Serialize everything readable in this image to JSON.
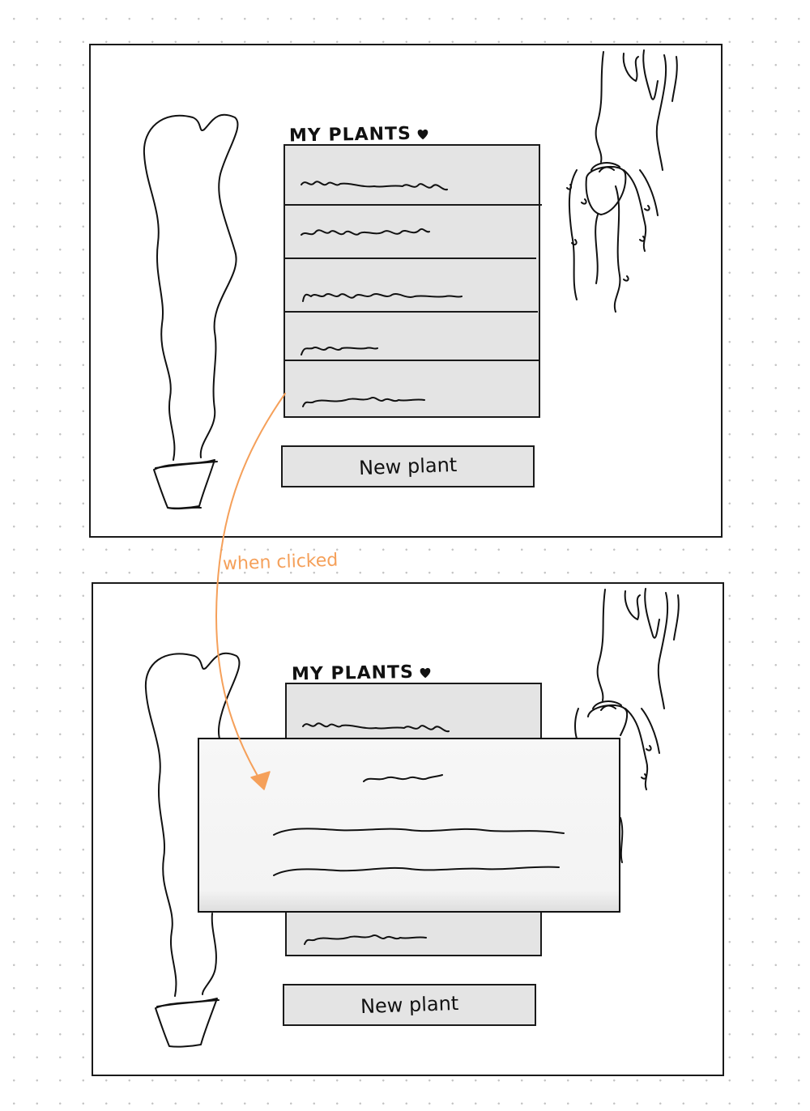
{
  "screens": [
    {
      "title": "MY PLANTS",
      "new_plant_label": "New plant"
    },
    {
      "title": "MY PLANTS",
      "new_plant_label": "New plant"
    }
  ],
  "annotation": "when clicked",
  "colors": {
    "ink": "#111111",
    "panel_fill": "#e4e4e4",
    "modal_fill": "#f5f5f5",
    "annotation": "#f5a05a"
  },
  "icons": [
    "heart-icon",
    "tall-plant-drawing",
    "hanging-plant-drawing",
    "arrow-icon"
  ]
}
